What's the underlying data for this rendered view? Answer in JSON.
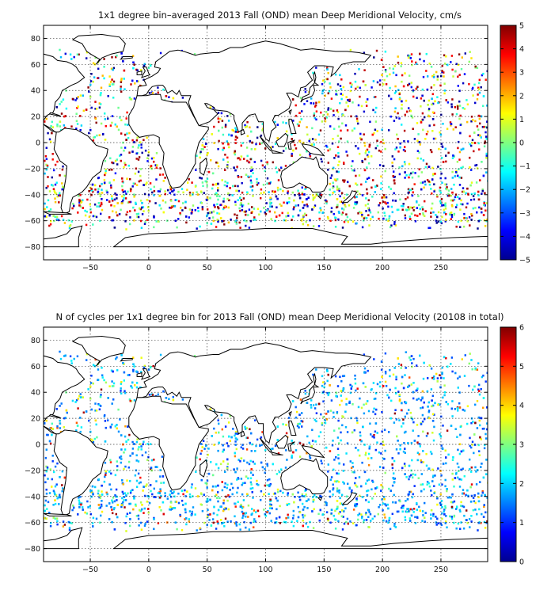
{
  "chart_data": [
    {
      "type": "heatmap",
      "title": "1x1 degree bin–averaged 2013 Fall (OND) mean Deep Meridional Velocity, cm/s",
      "xlim": [
        -90,
        290
      ],
      "ylim": [
        -90,
        90
      ],
      "xticks": [
        -50,
        0,
        50,
        100,
        150,
        200,
        250
      ],
      "yticks": [
        -80,
        -60,
        -40,
        -20,
        0,
        20,
        40,
        60,
        80
      ],
      "colorbar": {
        "min": -5,
        "max": 5,
        "ticks": [
          -5,
          -4,
          -3,
          -2,
          -1,
          0,
          1,
          2,
          3,
          4,
          5
        ],
        "colormap": "jet"
      },
      "grid": true
    },
    {
      "type": "heatmap",
      "title": "N of cycles per 1x1 degree bin for 2013 Fall (OND) mean Deep Meridional Velocity (20108 in total)",
      "xlim": [
        -90,
        290
      ],
      "ylim": [
        -90,
        90
      ],
      "xticks": [
        -50,
        0,
        50,
        100,
        150,
        200,
        250
      ],
      "yticks": [
        -80,
        -60,
        -40,
        -20,
        0,
        20,
        40,
        60,
        80
      ],
      "colorbar": {
        "min": 0,
        "max": 6,
        "ticks": [
          0,
          1,
          2,
          3,
          4,
          5,
          6
        ],
        "colormap": "jet"
      },
      "grid": true
    }
  ]
}
